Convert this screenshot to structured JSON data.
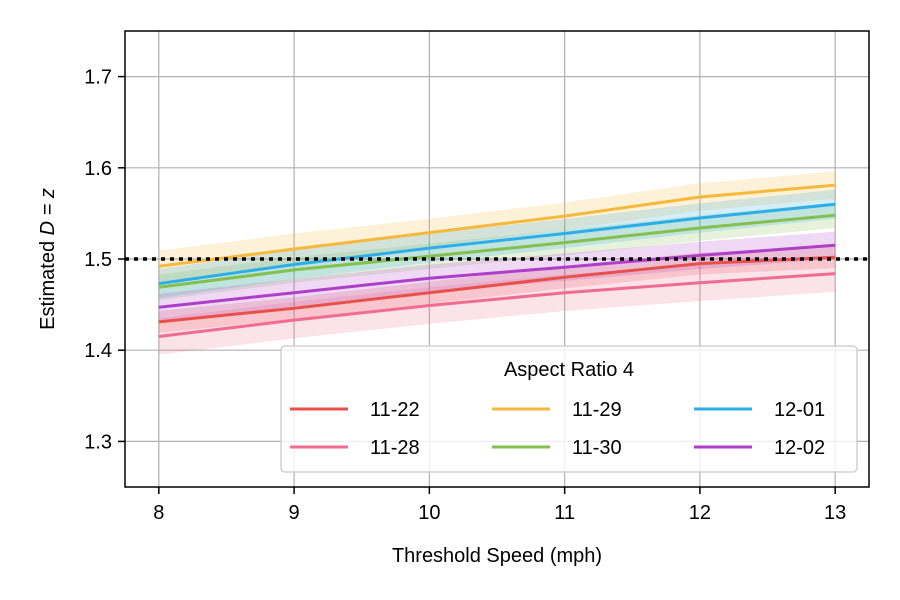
{
  "chart_data": {
    "type": "line",
    "xlabel": "Threshold Speed (mph)",
    "ylabel_prefix": "Estimated ",
    "ylabel_math": "D = z",
    "xlim": [
      7.75,
      13.25
    ],
    "ylim": [
      1.25,
      1.75
    ],
    "xticks": [
      8,
      9,
      10,
      11,
      12,
      13
    ],
    "yticks": [
      1.3,
      1.4,
      1.5,
      1.6,
      1.7
    ],
    "grid": true,
    "reference_line": {
      "y": 1.5,
      "style": "dotted",
      "color": "#000000"
    },
    "legend": {
      "title": "Aspect Ratio 4",
      "placement": "lower-right",
      "columns": 3
    },
    "x": [
      8,
      9,
      10,
      11,
      12,
      13
    ],
    "series": [
      {
        "name": "11-22",
        "color": "#e8514a",
        "values": [
          1.431,
          1.446,
          1.463,
          1.48,
          1.495,
          1.502
        ],
        "band": [
          0.012,
          0.012,
          0.012,
          0.012,
          0.012,
          0.012
        ]
      },
      {
        "name": "11-28",
        "color": "#f06c91",
        "values": [
          1.415,
          1.433,
          1.449,
          1.463,
          1.474,
          1.484
        ],
        "band": [
          0.02,
          0.02,
          0.02,
          0.02,
          0.02,
          0.02
        ]
      },
      {
        "name": "11-29",
        "color": "#f7b93c",
        "values": [
          1.492,
          1.511,
          1.529,
          1.547,
          1.568,
          1.581
        ],
        "band": [
          0.017,
          0.017,
          0.015,
          0.015,
          0.015,
          0.015
        ]
      },
      {
        "name": "11-30",
        "color": "#84bf50",
        "values": [
          1.469,
          1.488,
          1.503,
          1.518,
          1.534,
          1.548
        ],
        "band": [
          0.014,
          0.014,
          0.014,
          0.014,
          0.014,
          0.014
        ]
      },
      {
        "name": "12-01",
        "color": "#2eaee8",
        "values": [
          1.473,
          1.494,
          1.512,
          1.528,
          1.545,
          1.56
        ],
        "band": [
          0.016,
          0.016,
          0.016,
          0.016,
          0.016,
          0.016
        ]
      },
      {
        "name": "12-02",
        "color": "#ae3fc8",
        "values": [
          1.447,
          1.463,
          1.479,
          1.491,
          1.504,
          1.515
        ],
        "band": [
          0.015,
          0.015,
          0.015,
          0.015,
          0.015,
          0.015
        ]
      }
    ]
  }
}
